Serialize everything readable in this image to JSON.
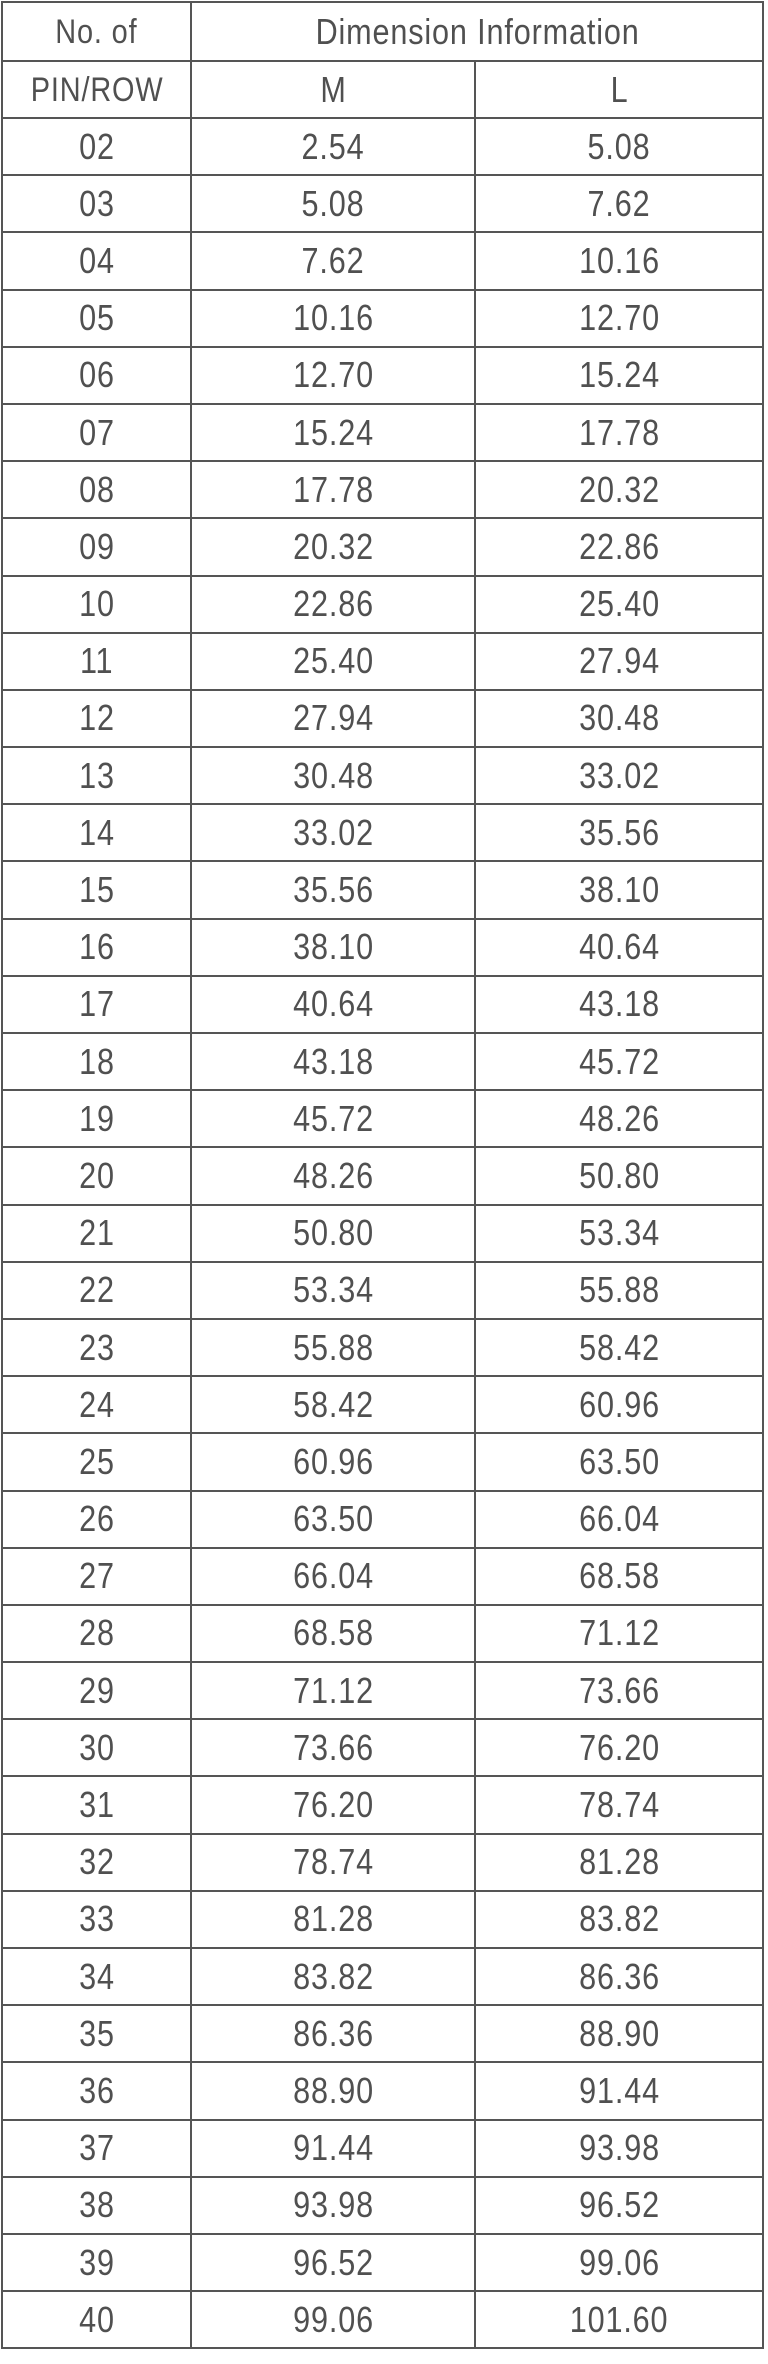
{
  "header": {
    "col1_line1": "No. of",
    "col1_line2": "PIN/ROW",
    "group": "Dimension Information",
    "col_m": "M",
    "col_l": "L"
  },
  "rows": [
    {
      "pins": "02",
      "m": "2.54",
      "l": "5.08"
    },
    {
      "pins": "03",
      "m": "5.08",
      "l": "7.62"
    },
    {
      "pins": "04",
      "m": "7.62",
      "l": "10.16"
    },
    {
      "pins": "05",
      "m": "10.16",
      "l": "12.70"
    },
    {
      "pins": "06",
      "m": "12.70",
      "l": "15.24"
    },
    {
      "pins": "07",
      "m": "15.24",
      "l": "17.78"
    },
    {
      "pins": "08",
      "m": "17.78",
      "l": "20.32"
    },
    {
      "pins": "09",
      "m": "20.32",
      "l": "22.86"
    },
    {
      "pins": "10",
      "m": "22.86",
      "l": "25.40"
    },
    {
      "pins": "11",
      "m": "25.40",
      "l": "27.94"
    },
    {
      "pins": "12",
      "m": "27.94",
      "l": "30.48"
    },
    {
      "pins": "13",
      "m": "30.48",
      "l": "33.02"
    },
    {
      "pins": "14",
      "m": "33.02",
      "l": "35.56"
    },
    {
      "pins": "15",
      "m": "35.56",
      "l": "38.10"
    },
    {
      "pins": "16",
      "m": "38.10",
      "l": "40.64"
    },
    {
      "pins": "17",
      "m": "40.64",
      "l": "43.18"
    },
    {
      "pins": "18",
      "m": "43.18",
      "l": "45.72"
    },
    {
      "pins": "19",
      "m": "45.72",
      "l": "48.26"
    },
    {
      "pins": "20",
      "m": "48.26",
      "l": "50.80"
    },
    {
      "pins": "21",
      "m": "50.80",
      "l": "53.34"
    },
    {
      "pins": "22",
      "m": "53.34",
      "l": "55.88"
    },
    {
      "pins": "23",
      "m": "55.88",
      "l": "58.42"
    },
    {
      "pins": "24",
      "m": "58.42",
      "l": "60.96"
    },
    {
      "pins": "25",
      "m": "60.96",
      "l": "63.50"
    },
    {
      "pins": "26",
      "m": "63.50",
      "l": "66.04"
    },
    {
      "pins": "27",
      "m": "66.04",
      "l": "68.58"
    },
    {
      "pins": "28",
      "m": "68.58",
      "l": "71.12"
    },
    {
      "pins": "29",
      "m": "71.12",
      "l": "73.66"
    },
    {
      "pins": "30",
      "m": "73.66",
      "l": "76.20"
    },
    {
      "pins": "31",
      "m": "76.20",
      "l": "78.74"
    },
    {
      "pins": "32",
      "m": "78.74",
      "l": "81.28"
    },
    {
      "pins": "33",
      "m": "81.28",
      "l": "83.82"
    },
    {
      "pins": "34",
      "m": "83.82",
      "l": "86.36"
    },
    {
      "pins": "35",
      "m": "86.36",
      "l": "88.90"
    },
    {
      "pins": "36",
      "m": "88.90",
      "l": "91.44"
    },
    {
      "pins": "37",
      "m": "91.44",
      "l": "93.98"
    },
    {
      "pins": "38",
      "m": "93.98",
      "l": "96.52"
    },
    {
      "pins": "39",
      "m": "96.52",
      "l": "99.06"
    },
    {
      "pins": "40",
      "m": "99.06",
      "l": "101.60"
    }
  ]
}
